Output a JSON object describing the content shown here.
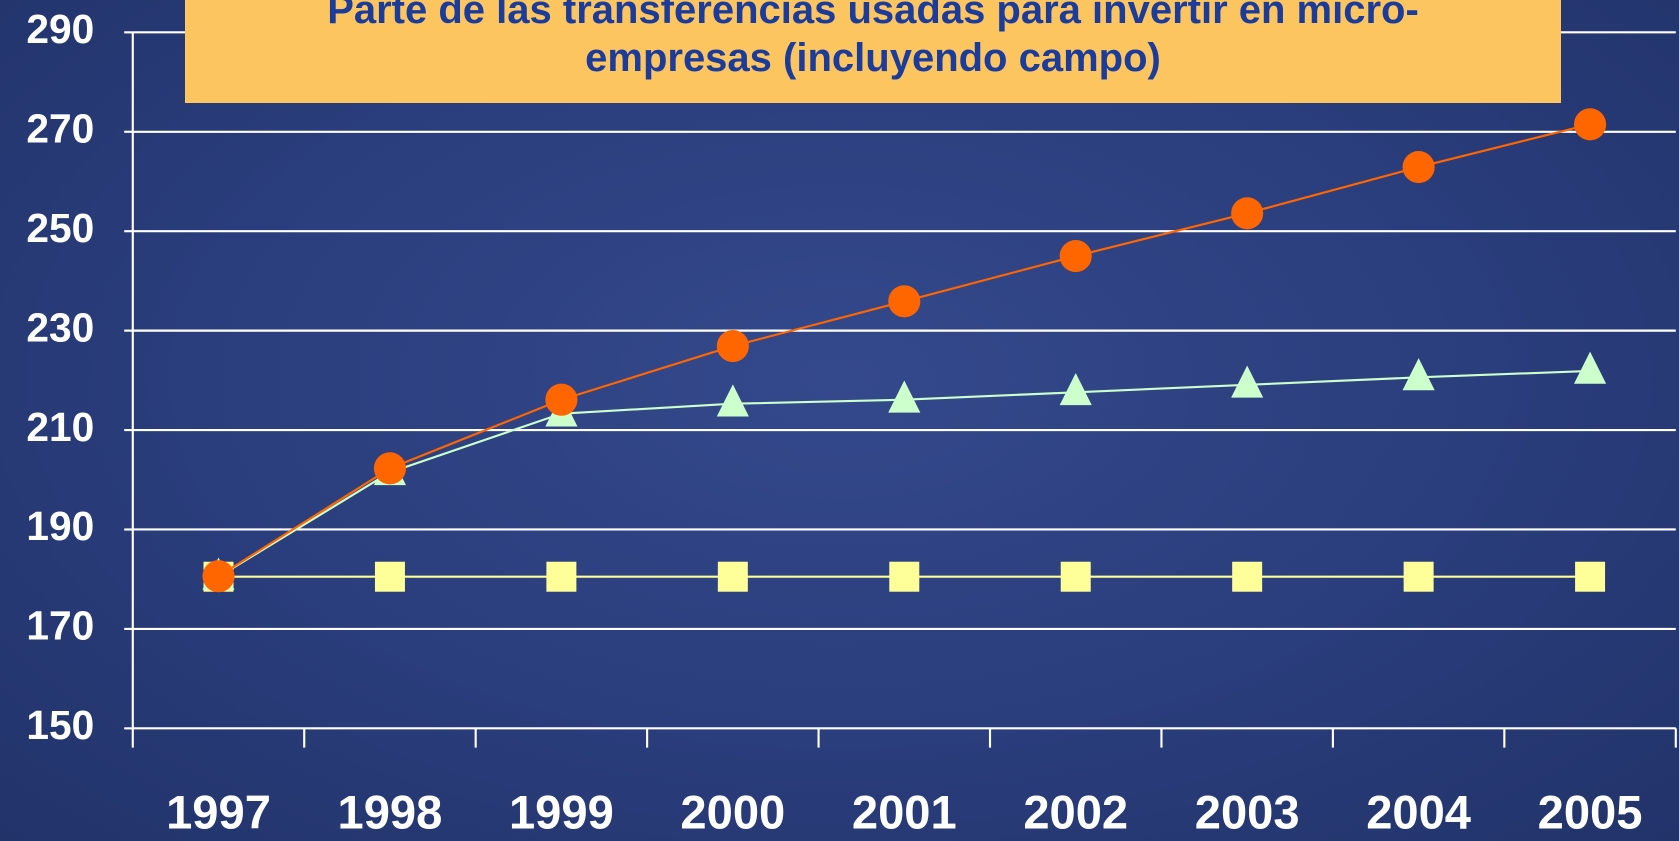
{
  "chart_data": {
    "type": "line",
    "title": "Parte de las transferencias usadas para invertir en micro-\nempresas (incluyendo campo)",
    "categories": [
      "1997",
      "1998",
      "1999",
      "2000",
      "2001",
      "2002",
      "2003",
      "2004",
      "2005"
    ],
    "series": [
      {
        "color": "#ffff99",
        "marker": "square",
        "values": [
          180.5,
          180.5,
          180.5,
          180.5,
          180.5,
          180.5,
          180.5,
          180.5,
          180.5
        ]
      },
      {
        "color": "#ccffcc",
        "marker": "triangle",
        "values": [
          180.5,
          201.5,
          213.3,
          215.3,
          216.1,
          217.6,
          219.1,
          220.6,
          221.9
        ]
      },
      {
        "color": "#ff6600",
        "marker": "circle",
        "values": [
          180.6,
          202.3,
          216.1,
          226.9,
          235.9,
          245,
          253.6,
          262.9,
          271.5
        ]
      }
    ],
    "ylim": [
      150,
      290
    ],
    "yticks": [
      150,
      170,
      190,
      210,
      230,
      250,
      270,
      290
    ],
    "grid": true
  }
}
